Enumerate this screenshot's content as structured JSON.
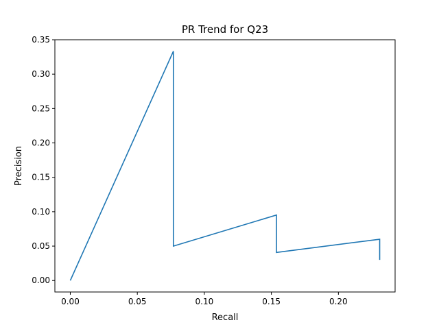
{
  "chart_data": {
    "type": "line",
    "title": "PR Trend for Q23",
    "xlabel": "Recall",
    "ylabel": "Precision",
    "xlim": [
      -0.0115,
      0.2423
    ],
    "ylim": [
      -0.0167,
      0.35
    ],
    "x_ticks": [
      0.0,
      0.05,
      0.1,
      0.15,
      0.2
    ],
    "x_tick_labels": [
      "0.00",
      "0.05",
      "0.10",
      "0.15",
      "0.20"
    ],
    "y_ticks": [
      0.0,
      0.05,
      0.1,
      0.15,
      0.2,
      0.25,
      0.3,
      0.35
    ],
    "y_tick_labels": [
      "0.00",
      "0.05",
      "0.10",
      "0.15",
      "0.20",
      "0.25",
      "0.30",
      "0.35"
    ],
    "grid": false,
    "series": [
      {
        "color": "#1f77b4",
        "x": [
          0.0,
          0.0769,
          0.0769,
          0.1538,
          0.1538,
          0.2308,
          0.2308
        ],
        "y": [
          0.0,
          0.3333,
          0.05,
          0.0952,
          0.0408,
          0.06,
          0.03
        ]
      }
    ]
  }
}
